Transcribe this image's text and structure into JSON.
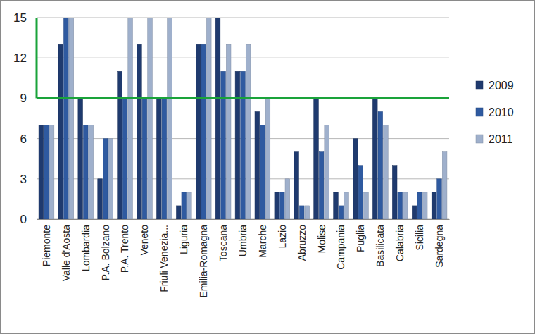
{
  "chart_data": {
    "type": "bar",
    "categories": [
      "Piemonte",
      "Valle d'Aosta",
      "Lombardia",
      "P.A. Bolzano",
      "P.A. Trento",
      "Veneto",
      "Friuli Venezia...",
      "Liguria",
      "Emilia-Romagna",
      "Toscana",
      "Umbria",
      "Marche",
      "Lazio",
      "Abruzzo",
      "Molise",
      "Campania",
      "Puglia",
      "Basilicata",
      "Calabria",
      "Sicilia",
      "Sardegna"
    ],
    "series": [
      {
        "name": "2009",
        "color": "#1f3a6e",
        "values": [
          7,
          13,
          9,
          3,
          11,
          13,
          9,
          1,
          13,
          15,
          11,
          8,
          2,
          5,
          9,
          2,
          6,
          9,
          4,
          1,
          2
        ]
      },
      {
        "name": "2010",
        "color": "#2f5aa0",
        "values": [
          7,
          15,
          7,
          6,
          9,
          9,
          9,
          2,
          13,
          11,
          11,
          7,
          2,
          1,
          5,
          1,
          4,
          8,
          2,
          2,
          3
        ]
      },
      {
        "name": "2011",
        "color": "#9fb0cc",
        "values": [
          7,
          15,
          7,
          6,
          15,
          15,
          15,
          2,
          15,
          13,
          13,
          9,
          3,
          1,
          7,
          2,
          2,
          7,
          2,
          2,
          5
        ]
      }
    ],
    "ylim": [
      0,
      15
    ],
    "yticks": [
      0,
      3,
      6,
      9,
      12,
      15
    ],
    "grid": true,
    "legend": "right",
    "reference_line": 9,
    "reference_color": "#1aa33a"
  }
}
